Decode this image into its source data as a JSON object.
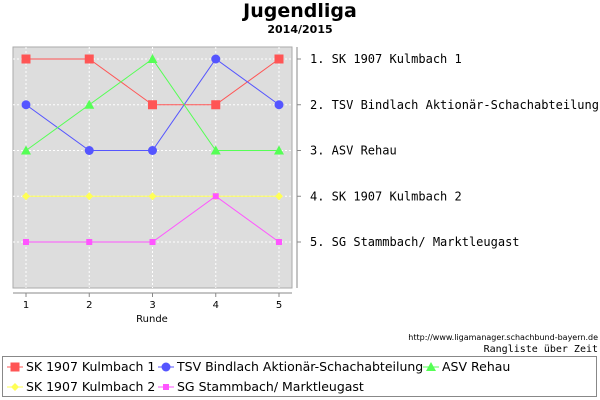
{
  "chart_data": {
    "type": "line",
    "title": "Jugendliga",
    "subtitle": "2014/2015",
    "xlabel": "Runde",
    "ylabel": "",
    "x": [
      1,
      2,
      3,
      4,
      5
    ],
    "ylim": [
      1,
      5
    ],
    "y_inverted": true,
    "grid": true,
    "legend_placement": "bottom",
    "rank_labels": [
      "1. SK 1907 Kulmbach 1",
      "2. TSV Bindlach Aktionär-Schachabteilung",
      "3. ASV Rehau",
      "4. SK 1907 Kulmbach 2",
      "5. SG Stammbach/ Marktleugast"
    ],
    "series": [
      {
        "name": "SK 1907 Kulmbach 1",
        "color": "#ff5555",
        "marker": "square",
        "values": [
          1,
          1,
          2,
          2,
          1
        ]
      },
      {
        "name": "TSV Bindlach Aktionär-Schachabteilung",
        "color": "#5555ff",
        "marker": "circle",
        "values": [
          2,
          3,
          3,
          1,
          2
        ]
      },
      {
        "name": "ASV Rehau",
        "color": "#55ff55",
        "marker": "triangle",
        "values": [
          3,
          2,
          1,
          3,
          3
        ]
      },
      {
        "name": "SK 1907 Kulmbach 2",
        "color": "#ffff55",
        "marker": "diamond",
        "values": [
          4,
          4,
          4,
          4,
          4
        ]
      },
      {
        "name": "SG Stammbach/ Marktleugast",
        "color": "#ff55ff",
        "marker": "smallsquare",
        "values": [
          5,
          5,
          5,
          4,
          5
        ]
      }
    ]
  },
  "source_url": "http://www.ligamanager.schachbund-bayern.de",
  "caption": "Rangliste über Zeit"
}
